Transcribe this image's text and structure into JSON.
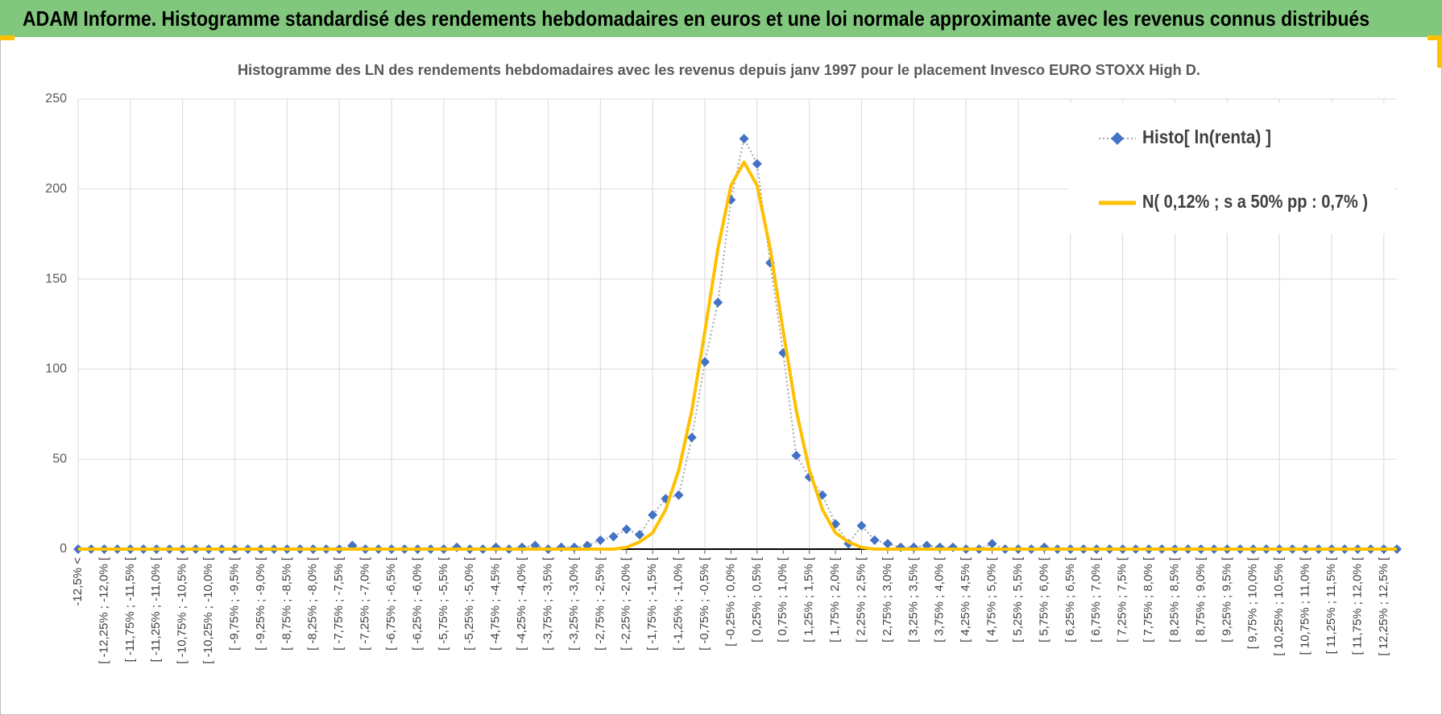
{
  "chart_data": {
    "type": "line",
    "banner": "ADAM Informe. Histogramme standardisé des rendements hebdomadaires en euros et une loi normale approximante avec les revenus connus distribués",
    "title": "Histogramme des LN des rendements hebdomadaires avec les revenus depuis janv 1997 pour le placement Invesco EURO STOXX High D.",
    "categories": [
      "-12,5% <",
      null,
      "[ -12,25% ; -12,0% [",
      null,
      "[ -11,75% ; -11,5% [",
      null,
      "[ -11,25% ; -11,0% [",
      null,
      "[ -10,75% ; -10,5% [",
      null,
      "[ -10,25% ; -10,0% [",
      null,
      "[ -9,75% ; -9,5% [",
      null,
      "[ -9,25% ; -9,0% [",
      null,
      "[ -8,75% ; -8,5% [",
      null,
      "[ -8,25% ; -8,0% [",
      null,
      "[ -7,75% ; -7,5% [",
      null,
      "[ -7,25% ; -7,0% [",
      null,
      "[ -6,75% ; -6,5% [",
      null,
      "[ -6,25% ; -6,0% [",
      null,
      "[ -5,75% ; -5,5% [",
      null,
      "[ -5,25% ; -5,0% [",
      null,
      "[ -4,75% ; -4,5% [",
      null,
      "[ -4,25% ; -4,0% [",
      null,
      "[ -3,75% ; -3,5% [",
      null,
      "[ -3,25% ; -3,0% [",
      null,
      "[ -2,75% ; -2,5% [",
      null,
      "[ -2,25% ; -2,0% [",
      null,
      "[ -1,75% ; -1,5% [",
      null,
      "[ -1,25% ; -1,0% [",
      null,
      "[ -0,75% ; -0,5% [",
      null,
      "[ -0,25% ; 0,0% [",
      null,
      "[ 0,25% ; 0,5% [",
      null,
      "[ 0,75% ; 1,0% [",
      null,
      "[ 1,25% ; 1,5% [",
      null,
      "[ 1,75% ; 2,0% [",
      null,
      "[ 2,25% ; 2,5% [",
      null,
      "[ 2,75% ; 3,0% [",
      null,
      "[ 3,25% ; 3,5% [",
      null,
      "[ 3,75% ; 4,0% [",
      null,
      "[ 4,25% ; 4,5% [",
      null,
      "[ 4,75% ; 5,0% [",
      null,
      "[ 5,25% ; 5,5% [",
      null,
      "[ 5,75% ; 6,0% [",
      null,
      "[ 6,25% ; 6,5% [",
      null,
      "[ 6,75% ; 7,0% [",
      null,
      "[ 7,25% ; 7,5% [",
      null,
      "[ 7,75% ; 8,0% [",
      null,
      "[ 8,25% ; 8,5% [",
      null,
      "[ 8,75% ; 9,0% [",
      null,
      "[ 9,25% ; 9,5% [",
      null,
      "[ 9,75% ; 10,0% [",
      null,
      "[ 10,25% ; 10,5% [",
      null,
      "[ 10,75% ; 11,0% [",
      null,
      "[ 11,25% ; 11,5% [",
      null,
      "[ 11,75% ; 12,0% [",
      null,
      "[ 12,25% ; 12,5% [",
      null
    ],
    "series": [
      {
        "name": "Histo[ ln(renta) ]",
        "color": "#4472c4",
        "line_color": "#a5a5a5",
        "values": [
          0,
          0,
          0,
          0,
          0,
          0,
          0,
          0,
          0,
          0,
          0,
          0,
          0,
          0,
          0,
          0,
          0,
          0,
          0,
          0,
          0,
          2,
          0,
          0,
          0,
          0,
          0,
          0,
          0,
          1,
          0,
          0,
          1,
          0,
          1,
          2,
          0,
          1,
          1,
          2,
          5,
          7,
          11,
          8,
          19,
          28,
          30,
          62,
          104,
          137,
          194,
          228,
          214,
          159,
          109,
          52,
          40,
          30,
          14,
          3,
          13,
          5,
          3,
          1,
          1,
          2,
          1,
          1,
          0,
          0,
          3,
          0,
          0,
          0,
          1,
          0,
          0,
          0,
          0,
          0,
          0,
          0,
          0,
          0,
          0,
          0,
          0,
          0,
          0,
          0,
          0,
          0,
          0,
          0,
          0,
          0,
          0,
          0,
          0,
          0,
          0,
          0
        ]
      },
      {
        "name": "N( 0,12% ; s a 50% pp : 0,7% )",
        "color": "#ffc000",
        "values": [
          0,
          0,
          0,
          0,
          0,
          0,
          0,
          0,
          0,
          0,
          0,
          0,
          0,
          0,
          0,
          0,
          0,
          0,
          0,
          0,
          0,
          0,
          0,
          0,
          0,
          0,
          0,
          0,
          0,
          0,
          0,
          0,
          0,
          0,
          0,
          0,
          0,
          0,
          0,
          0,
          0,
          0,
          1,
          4,
          9,
          22,
          44,
          77,
          121,
          167,
          202,
          215,
          202,
          167,
          121,
          77,
          44,
          22,
          9,
          4,
          1,
          0,
          0,
          0,
          0,
          0,
          0,
          0,
          0,
          0,
          0,
          0,
          0,
          0,
          0,
          0,
          0,
          0,
          0,
          0,
          0,
          0,
          0,
          0,
          0,
          0,
          0,
          0,
          0,
          0,
          0,
          0,
          0,
          0,
          0,
          0,
          0,
          0,
          0,
          0,
          0,
          0
        ]
      }
    ],
    "ylim": [
      0,
      250
    ],
    "yticks": [
      0,
      50,
      100,
      150,
      200,
      250
    ],
    "grid": true,
    "legend": "top-right"
  }
}
